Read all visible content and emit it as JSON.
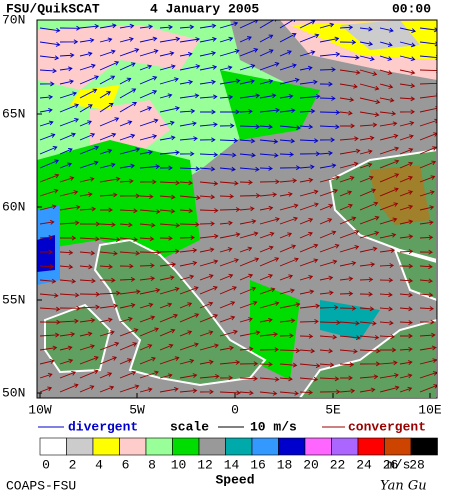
{
  "header": {
    "title": "FSU/QuikSCAT",
    "date": "4 January 2005",
    "time": "00:00"
  },
  "map": {
    "lat_labels": [
      "70N",
      "65N",
      "60N",
      "55N",
      "50N"
    ],
    "lon_labels": [
      "10W",
      "5W",
      "0",
      "5E",
      "10E"
    ]
  },
  "legend": {
    "divergent": "divergent",
    "scale": "scale",
    "scale_value": "10 m/s",
    "convergent": "convergent",
    "bins": [
      "0",
      "2",
      "4",
      "6",
      "8",
      "10",
      "12",
      "14",
      "16",
      "18",
      "20",
      "22",
      "24",
      "26",
      "28"
    ],
    "unit": "m/s",
    "title": "Speed"
  },
  "footer": {
    "source": "COAPS-FSU",
    "author": "Yan Gu"
  }
}
